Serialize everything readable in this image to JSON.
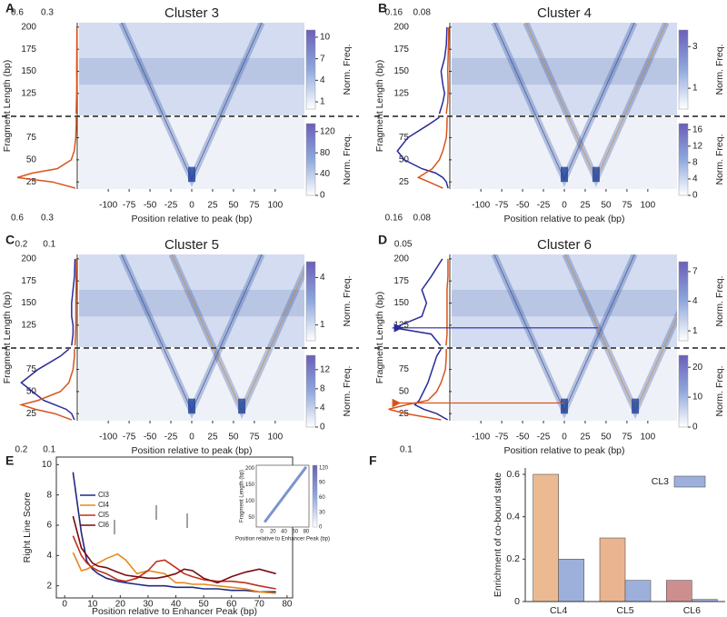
{
  "chart_data": [
    {
      "type": "heatmap",
      "panel": "A",
      "title": "Cluster 3",
      "xlabel": "Position relative to peak (bp)",
      "ylabel": "Fragment Length (bp)",
      "xlim": [
        -135,
        135
      ],
      "xticks": [
        -100,
        -75,
        -50,
        -25,
        0,
        25,
        50,
        75,
        100
      ],
      "ylim": [
        17,
        205
      ],
      "yticks": [
        25,
        50,
        75,
        125,
        150,
        175,
        200
      ],
      "top_profile": {
        "xlim": [
          0.7,
          0
        ],
        "xticks": [
          0.6,
          0.3
        ],
        "series": [
          {
            "color": "#d9531e",
            "length": [
              102,
              115,
              125,
              135,
              150,
              165,
              180,
              200
            ],
            "values": [
              0.01,
              0.008,
              0.006,
              0.005,
              0.006,
              0.005,
              0.004,
              0.003
            ]
          }
        ]
      },
      "bottom_profile": {
        "xlim": [
          0.7,
          0
        ],
        "xticks": [
          0.6,
          0.3
        ],
        "series": [
          {
            "color": "#d9531e",
            "length": [
              18,
              25,
              30,
              35,
              40,
              50,
              60,
              75,
              90,
              98
            ],
            "values": [
              0.02,
              0.25,
              0.6,
              0.45,
              0.2,
              0.06,
              0.03,
              0.015,
              0.01,
              0.01
            ]
          }
        ]
      },
      "top_colorbar": {
        "label": "Norm. Freq.",
        "clim": [
          0,
          11
        ],
        "ticks": [
          1,
          4,
          7,
          10
        ]
      },
      "bottom_colorbar": {
        "label": "Norm. Freq.",
        "clim": [
          0,
          135
        ],
        "ticks": [
          0,
          40,
          80,
          120
        ]
      }
    },
    {
      "type": "heatmap",
      "panel": "B",
      "title": "Cluster 4",
      "xlabel": "Position relative to peak (bp)",
      "ylabel": "Fragment Length (bp)",
      "xlim": [
        -135,
        135
      ],
      "xticks": [
        -100,
        -75,
        -50,
        -25,
        0,
        25,
        50,
        75,
        100
      ],
      "ylim": [
        17,
        205
      ],
      "yticks": [
        25,
        50,
        75,
        125,
        150,
        175,
        200
      ],
      "top_profile": {
        "xlim": [
          0.2,
          0
        ],
        "xticks": [
          0.16,
          0.08
        ],
        "series": [
          {
            "color": "#2a2a9a",
            "length": [
              102,
              115,
              125,
              135,
              150,
              165,
              180,
              200
            ],
            "values": [
              0.03,
              0.02,
              0.015,
              0.02,
              0.025,
              0.015,
              0.01,
              0.008
            ]
          },
          {
            "color": "#d9531e",
            "length": [
              102,
              115,
              125,
              135,
              150,
              165,
              180,
              200
            ],
            "values": [
              0.01,
              0.006,
              0.005,
              0.005,
              0.006,
              0.005,
              0.004,
              0.003
            ]
          }
        ]
      },
      "bottom_profile": {
        "xlim": [
          0.2,
          0
        ],
        "xticks": [
          0.16,
          0.08
        ],
        "series": [
          {
            "color": "#2a2a9a",
            "length": [
              18,
              25,
              30,
              35,
              40,
              50,
              60,
              75,
              90,
              98
            ],
            "values": [
              0.005,
              0.01,
              0.02,
              0.04,
              0.08,
              0.13,
              0.15,
              0.12,
              0.06,
              0.03
            ]
          },
          {
            "color": "#d9531e",
            "length": [
              18,
              25,
              30,
              35,
              40,
              50,
              60,
              75,
              90,
              98
            ],
            "values": [
              0.02,
              0.06,
              0.09,
              0.07,
              0.05,
              0.03,
              0.02,
              0.01,
              0.008,
              0.008
            ]
          }
        ]
      },
      "top_colorbar": {
        "label": "Norm. Freq.",
        "clim": [
          0,
          3.8
        ],
        "ticks": [
          1,
          3
        ]
      },
      "bottom_colorbar": {
        "label": "Norm. Freq.",
        "clim": [
          0,
          17.5
        ],
        "ticks": [
          0,
          4,
          8,
          12,
          16
        ]
      }
    },
    {
      "type": "heatmap",
      "panel": "C",
      "title": "Cluster 5",
      "xlabel": "Position relative to peak (bp)",
      "ylabel": "Fragment Length (bp)",
      "xlim": [
        -135,
        135
      ],
      "xticks": [
        -100,
        -75,
        -50,
        -25,
        0,
        25,
        50,
        75,
        100
      ],
      "ylim": [
        17,
        205
      ],
      "yticks": [
        25,
        50,
        75,
        125,
        150,
        175,
        200
      ],
      "top_profile": {
        "xlim": [
          0.25,
          0
        ],
        "xticks": [
          0.2,
          0.1
        ],
        "series": [
          {
            "color": "#2a2a9a",
            "length": [
              102,
              115,
              125,
              135,
              150,
              165,
              180,
              200
            ],
            "values": [
              0.02,
              0.015,
              0.015,
              0.02,
              0.02,
              0.015,
              0.01,
              0.008
            ]
          },
          {
            "color": "#d9531e",
            "length": [
              102,
              115,
              125,
              135,
              150,
              165,
              180,
              200
            ],
            "values": [
              0.008,
              0.006,
              0.005,
              0.005,
              0.005,
              0.004,
              0.004,
              0.003
            ]
          }
        ]
      },
      "bottom_profile": {
        "xlim": [
          0.25,
          0
        ],
        "xticks": [
          0.2,
          0.1
        ],
        "series": [
          {
            "color": "#2a2a9a",
            "length": [
              18,
              25,
              30,
              35,
              40,
              50,
              60,
              75,
              90,
              98
            ],
            "values": [
              0.01,
              0.02,
              0.04,
              0.08,
              0.12,
              0.16,
              0.2,
              0.14,
              0.06,
              0.03
            ]
          },
          {
            "color": "#d9531e",
            "length": [
              18,
              25,
              30,
              35,
              40,
              50,
              60,
              75,
              90,
              98
            ],
            "values": [
              0.02,
              0.08,
              0.15,
              0.2,
              0.14,
              0.06,
              0.03,
              0.015,
              0.01,
              0.01
            ]
          }
        ]
      },
      "top_colorbar": {
        "label": "Norm. Freq.",
        "clim": [
          0,
          5
        ],
        "ticks": [
          1,
          4
        ]
      },
      "bottom_colorbar": {
        "label": "Norm. Freq.",
        "clim": [
          0,
          15
        ],
        "ticks": [
          0,
          4,
          8,
          12
        ]
      }
    },
    {
      "type": "heatmap",
      "panel": "D",
      "title": "Cluster 6",
      "xlabel": "Position relative to peak (bp)",
      "ylabel": "Fragment Length (bp)",
      "xlim": [
        -135,
        135
      ],
      "xticks": [
        -100,
        -75,
        -50,
        -25,
        0,
        25,
        50,
        75,
        100
      ],
      "ylim": [
        17,
        205
      ],
      "yticks": [
        25,
        50,
        75,
        125,
        150,
        175,
        200
      ],
      "top_profile": {
        "xlim": [
          0.075,
          0
        ],
        "xticks": [
          0.05
        ],
        "series": [
          {
            "color": "#2a2a9a",
            "length": [
              102,
              115,
              122,
              135,
              150,
              165,
              180,
              200
            ],
            "values": [
              0.01,
              0.02,
              0.06,
              0.03,
              0.025,
              0.03,
              0.02,
              0.008
            ]
          },
          {
            "color": "#d9531e",
            "length": [
              102,
              115,
              122,
              135,
              150,
              165,
              180,
              200
            ],
            "values": [
              0.004,
              0.003,
              0.003,
              0.003,
              0.003,
              0.003,
              0.002,
              0.002
            ]
          }
        ]
      },
      "bottom_profile": {
        "xlim": [
          0.16,
          0
        ],
        "xticks": [
          0.1
        ],
        "series": [
          {
            "color": "#2a2a9a",
            "length": [
              18,
              25,
              30,
              35,
              40,
              50,
              60,
              75,
              90,
              98
            ],
            "values": [
              0.005,
              0.03,
              0.06,
              0.08,
              0.07,
              0.06,
              0.05,
              0.04,
              0.03,
              0.02
            ]
          },
          {
            "color": "#d9531e",
            "length": [
              18,
              25,
              30,
              35,
              40,
              50,
              60,
              75,
              90,
              98
            ],
            "values": [
              0.02,
              0.1,
              0.14,
              0.1,
              0.05,
              0.03,
              0.02,
              0.01,
              0.008,
              0.008
            ]
          }
        ]
      },
      "top_colorbar": {
        "label": "Norm. Freq.",
        "clim": [
          0,
          8
        ],
        "ticks": [
          1,
          4,
          7
        ]
      },
      "bottom_colorbar": {
        "label": "Norm. Freq.",
        "clim": [
          0,
          24
        ],
        "ticks": [
          0,
          10,
          20
        ]
      }
    },
    {
      "type": "line",
      "panel": "E",
      "xlabel": "Position relative to Enhancer Peak (bp)",
      "ylabel": "Right Line Score",
      "xlim": [
        -3,
        82
      ],
      "xticks": [
        0,
        10,
        20,
        30,
        40,
        50,
        60,
        70,
        80
      ],
      "ylim": [
        1.2,
        10.5
      ],
      "yticks": [
        2,
        4,
        6,
        8,
        10
      ],
      "x": [
        3,
        6,
        8,
        10,
        12,
        15,
        19,
        22,
        26,
        30,
        33,
        36,
        40,
        43,
        46,
        50,
        55,
        60,
        65,
        70,
        76
      ],
      "series": [
        {
          "name": "Cl3",
          "color": "#1f2a80",
          "values": [
            9.5,
            5.5,
            3.6,
            3.1,
            2.8,
            2.5,
            2.3,
            2.2,
            2.1,
            2.0,
            2.0,
            2.0,
            1.9,
            1.9,
            1.9,
            1.8,
            1.8,
            1.7,
            1.7,
            1.6,
            1.6
          ]
        },
        {
          "name": "Cl4",
          "color": "#e58a1f",
          "values": [
            4.2,
            3.0,
            3.1,
            3.3,
            3.5,
            3.8,
            4.1,
            3.7,
            2.8,
            3.0,
            2.9,
            2.8,
            2.2,
            2.2,
            2.1,
            2.1,
            2.0,
            1.9,
            1.8,
            1.6,
            1.5
          ]
        },
        {
          "name": "Cl5",
          "color": "#c0301a",
          "values": [
            5.3,
            4.0,
            3.5,
            3.2,
            3.0,
            2.8,
            2.4,
            2.3,
            2.5,
            3.0,
            3.6,
            3.7,
            3.2,
            2.8,
            2.6,
            2.4,
            2.3,
            2.3,
            2.2,
            2.0,
            1.8
          ]
        },
        {
          "name": "Cl6",
          "color": "#7a0b12",
          "values": [
            6.6,
            4.5,
            4.0,
            3.5,
            3.3,
            3.2,
            2.9,
            2.7,
            2.6,
            2.5,
            2.5,
            2.6,
            2.8,
            3.1,
            3.0,
            2.5,
            2.2,
            2.6,
            2.9,
            3.1,
            2.8
          ]
        }
      ],
      "inset": {
        "xlabel": "Position relative to Enhancer Peak (bp)",
        "ylabel": "Fragment Length (bp)",
        "xlim": [
          -10,
          85
        ],
        "xticks": [
          0,
          20,
          40,
          60,
          80
        ],
        "ylim": [
          20,
          210
        ],
        "yticks": [
          50,
          100,
          150,
          200
        ],
        "clim": [
          0,
          125
        ],
        "colorbar_ticks": [
          0,
          30,
          60,
          90,
          120
        ]
      }
    },
    {
      "type": "bar",
      "panel": "F",
      "ylabel": "Enrichment of co-bound state",
      "categories": [
        "CL4",
        "CL5",
        "CL6"
      ],
      "ylim": [
        0,
        0.63
      ],
      "yticks": [
        0,
        0.2,
        0.4,
        0.6
      ],
      "series": [
        {
          "colors": [
            "#ebba92",
            "#e9b48f",
            "#cf8e8e"
          ],
          "values": [
            0.6,
            0.3,
            0.1
          ]
        },
        {
          "name": "CL3",
          "color": "#9db0dc",
          "values": [
            0.2,
            0.1,
            0.01
          ]
        }
      ]
    }
  ]
}
